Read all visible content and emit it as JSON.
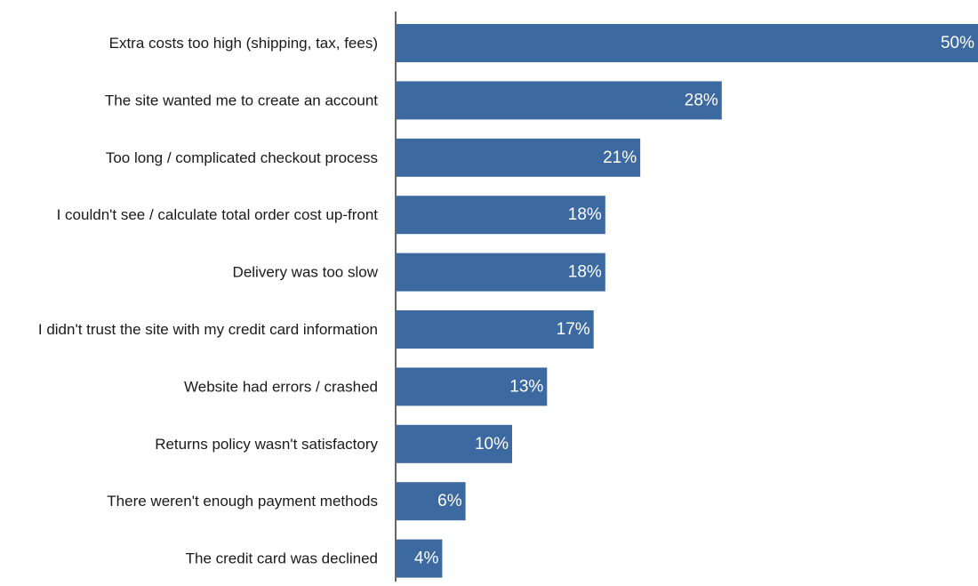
{
  "chart_data": {
    "type": "bar",
    "orientation": "horizontal",
    "title": "",
    "xlabel": "",
    "ylabel": "",
    "categories": [
      "Extra costs too high (shipping, tax, fees)",
      "The site wanted me to create an account",
      "Too long / complicated checkout process",
      "I couldn't see / calculate total order cost up-front",
      "Delivery was too slow",
      "I didn't trust the site with my credit card information",
      "Website had errors / crashed",
      "Returns policy wasn't satisfactory",
      "There weren't enough payment methods",
      "The credit card was declined"
    ],
    "values": [
      50,
      28,
      21,
      18,
      18,
      17,
      13,
      10,
      6,
      4
    ],
    "value_labels": [
      "50%",
      "28%",
      "21%",
      "18%",
      "18%",
      "17%",
      "13%",
      "10%",
      "6%",
      "4%"
    ],
    "unit": "%",
    "xlim": [
      0,
      50
    ],
    "grid": false,
    "legend": "none",
    "colors": {
      "bar": "#3c6aa0",
      "axis": "#333333",
      "category_text": "#1a1a1a",
      "value_text": "#ffffff"
    }
  }
}
